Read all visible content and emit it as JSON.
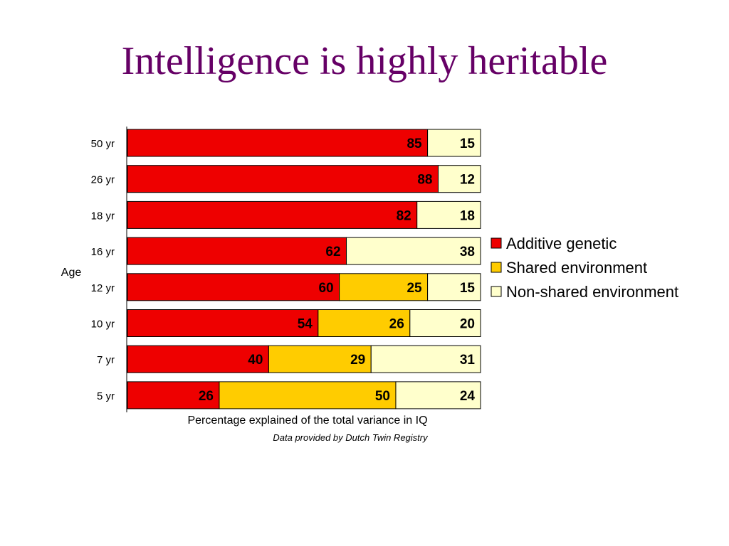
{
  "slide": {
    "title": "Intelligence is highly heritable"
  },
  "chart_data": {
    "type": "bar",
    "orientation": "horizontal",
    "stacked": true,
    "xlabel": "Percentage explained of the total variance in IQ",
    "ylabel": "Age",
    "caption": "Data provided by Dutch Twin Registry",
    "xlim": [
      0,
      100
    ],
    "grid": false,
    "legend_position": "right",
    "categories": [
      "50 yr",
      "26 yr",
      "18 yr",
      "16 yr",
      "12 yr",
      "10 yr",
      "7 yr",
      "5 yr"
    ],
    "series": [
      {
        "name": "Additive genetic",
        "color": "#ee0000",
        "values": [
          85,
          88,
          82,
          62,
          60,
          54,
          40,
          26
        ]
      },
      {
        "name": "Shared environment",
        "color": "#ffcc00",
        "values": [
          0,
          0,
          0,
          0,
          25,
          26,
          29,
          50
        ]
      },
      {
        "name": "Non-shared environment",
        "color": "#ffffcc",
        "values": [
          15,
          12,
          18,
          38,
          15,
          20,
          31,
          24
        ]
      }
    ]
  }
}
